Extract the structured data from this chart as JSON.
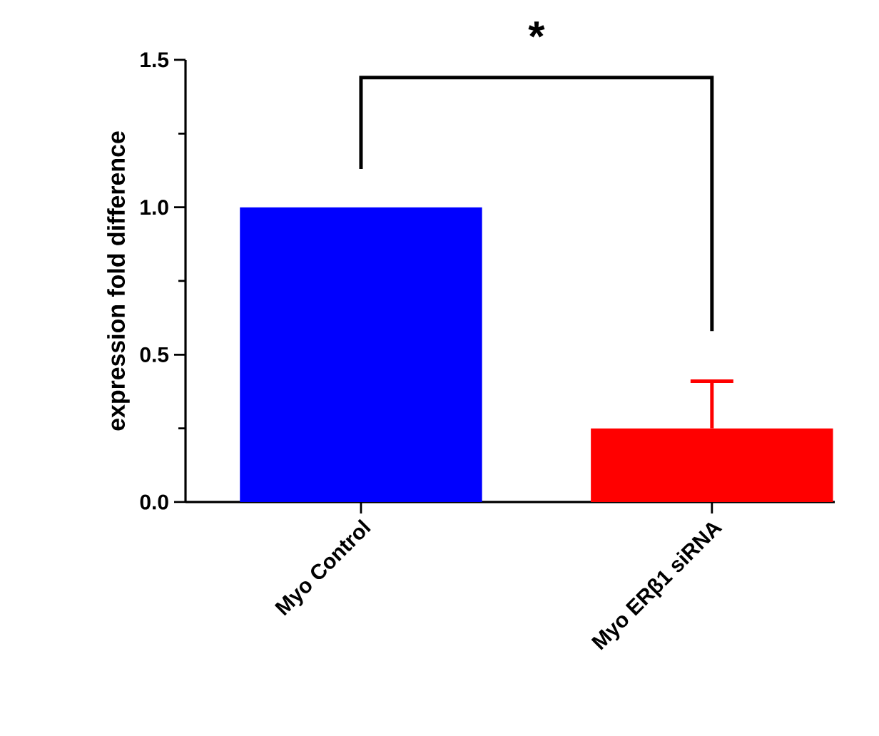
{
  "chart_data": {
    "type": "bar",
    "ylabel": "expression fold difference",
    "categories": [
      "Myo Control",
      "Myo ERβ1 siRNA"
    ],
    "values": [
      1.0,
      0.25
    ],
    "colors": [
      "#0000ff",
      "#ff0000"
    ],
    "errors": [
      null,
      [
        0.25,
        0.41
      ]
    ],
    "ylim": [
      0,
      1.5
    ],
    "yticks": [
      {
        "value": 0,
        "label": "0.0"
      },
      {
        "value": 0.5,
        "label": "0.5"
      },
      {
        "value": 1.0,
        "label": "1.0"
      },
      {
        "value": 1.5,
        "label": "1.5"
      }
    ],
    "annotations": [
      "*"
    ]
  }
}
